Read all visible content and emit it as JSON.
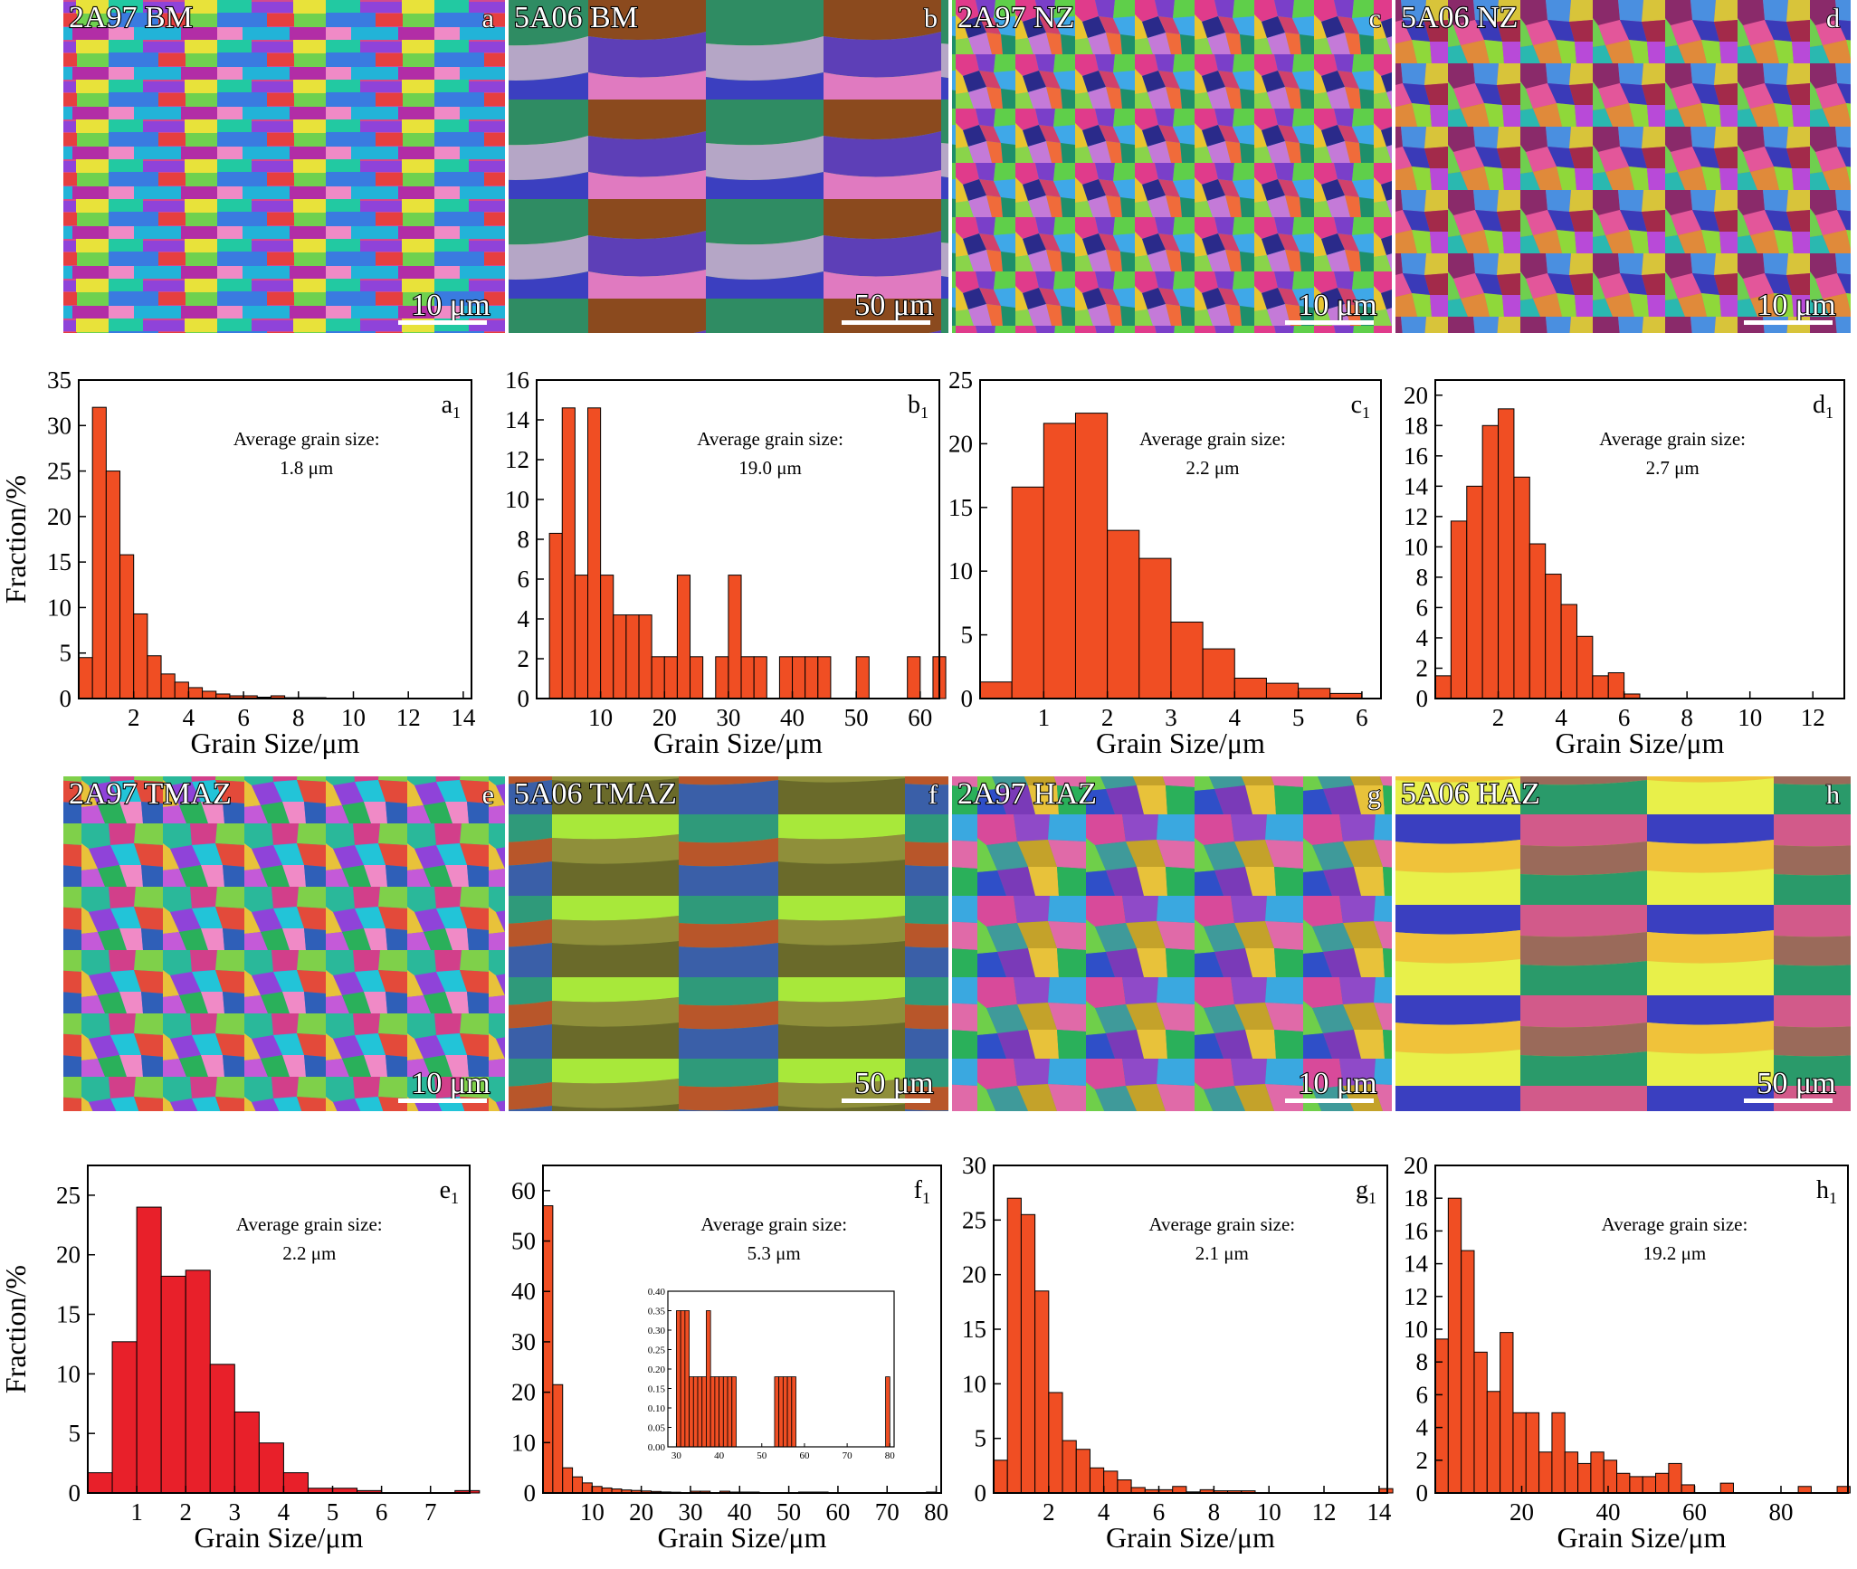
{
  "colors": {
    "bar_orange": "#f04e23",
    "bar_red": "#e8202a",
    "axis": "#000000",
    "scalebar": "#ffffff"
  },
  "maps": [
    {
      "id": "a",
      "title": "2A97 BM",
      "letter": "a",
      "scale": "10 μm"
    },
    {
      "id": "b",
      "title": "5A06 BM",
      "letter": "b",
      "scale": "50 μm"
    },
    {
      "id": "c",
      "title": "2A97 NZ",
      "letter": "c",
      "scale": "10 μm"
    },
    {
      "id": "d",
      "title": "5A06 NZ",
      "letter": "d",
      "scale": "10 μm"
    },
    {
      "id": "e",
      "title": "2A97 TMAZ",
      "letter": "e",
      "scale": "10 μm"
    },
    {
      "id": "f",
      "title": "5A06 TMAZ",
      "letter": "f",
      "scale": "50 μm"
    },
    {
      "id": "g",
      "title": "2A97 HAZ",
      "letter": "g",
      "scale": "10 μm"
    },
    {
      "id": "h",
      "title": "5A06 HAZ",
      "letter": "h",
      "scale": "50 μm"
    }
  ],
  "chart_data": [
    {
      "id": "a1",
      "type": "bar",
      "letter": "a",
      "sub": "1",
      "color": "orange",
      "xlabel": "Grain Size/μm",
      "ylabel": "Fraction/%",
      "annotation": "Average grain size:",
      "average": "1.8 μm",
      "xlim": [
        0,
        14.3
      ],
      "ylim": [
        0,
        35
      ],
      "xticks": [
        2,
        4,
        6,
        8,
        10,
        12,
        14
      ],
      "yticks": [
        0,
        5,
        10,
        15,
        20,
        25,
        30,
        35
      ],
      "bin_width": 0.5,
      "x": [
        0.25,
        0.75,
        1.25,
        1.75,
        2.25,
        2.75,
        3.25,
        3.75,
        4.25,
        4.75,
        5.25,
        5.75,
        6.25,
        6.75,
        7.25,
        7.75,
        8.25,
        8.75
      ],
      "values": [
        4.5,
        32,
        25,
        15.8,
        9.3,
        4.7,
        2.7,
        1.8,
        1.2,
        0.8,
        0.5,
        0.3,
        0.3,
        0.15,
        0.3,
        0.1,
        0.1,
        0.1
      ]
    },
    {
      "id": "b1",
      "type": "bar",
      "letter": "b",
      "sub": "1",
      "color": "orange",
      "xlabel": "Grain Size/μm",
      "ylabel": "",
      "annotation": "Average grain size:",
      "average": "19.0 μm",
      "xlim": [
        0,
        63
      ],
      "ylim": [
        0,
        16
      ],
      "xticks": [
        10,
        20,
        30,
        40,
        50,
        60
      ],
      "yticks": [
        0,
        2,
        4,
        6,
        8,
        10,
        12,
        14,
        16
      ],
      "bin_width": 2,
      "x": [
        3,
        5,
        7,
        9,
        11,
        13,
        15,
        17,
        19,
        21,
        23,
        25,
        29,
        31,
        33,
        35,
        39,
        41,
        43,
        45,
        51,
        59,
        63
      ],
      "values": [
        8.3,
        14.6,
        6.2,
        14.6,
        6.2,
        4.2,
        4.2,
        4.2,
        2.1,
        2.1,
        6.2,
        2.1,
        2.1,
        6.2,
        2.1,
        2.1,
        2.1,
        2.1,
        2.1,
        2.1,
        2.1,
        2.1,
        2.1
      ]
    },
    {
      "id": "c1",
      "type": "bar",
      "letter": "c",
      "sub": "1",
      "color": "orange",
      "xlabel": "Grain Size/μm",
      "ylabel": "",
      "annotation": "Average grain size:",
      "average": "2.2 μm",
      "xlim": [
        0,
        6.3
      ],
      "ylim": [
        0,
        25
      ],
      "xticks": [
        1,
        2,
        3,
        4,
        5,
        6
      ],
      "yticks": [
        0,
        5,
        10,
        15,
        20,
        25
      ],
      "bin_width": 0.5,
      "x": [
        0.25,
        0.75,
        1.25,
        1.75,
        2.25,
        2.75,
        3.25,
        3.75,
        4.25,
        4.75,
        5.25,
        5.75,
        6.25
      ],
      "values": [
        1.3,
        16.6,
        21.6,
        22.4,
        13.2,
        11,
        6,
        3.9,
        1.6,
        1.2,
        0.8,
        0.4,
        0
      ]
    },
    {
      "id": "d1",
      "type": "bar",
      "letter": "d",
      "sub": "1",
      "color": "orange",
      "xlabel": "Grain Size/μm",
      "ylabel": "",
      "annotation": "Average grain size:",
      "average": "2.7 μm",
      "xlim": [
        0,
        13
      ],
      "ylim": [
        0,
        21
      ],
      "xticks": [
        2,
        4,
        6,
        8,
        10,
        12
      ],
      "yticks": [
        0,
        2,
        4,
        6,
        8,
        10,
        12,
        14,
        16,
        18,
        20
      ],
      "bin_width": 0.5,
      "x": [
        0.25,
        0.75,
        1.25,
        1.75,
        2.25,
        2.75,
        3.25,
        3.75,
        4.25,
        4.75,
        5.25,
        5.75,
        6.25
      ],
      "values": [
        1.5,
        11.7,
        14,
        18,
        19.1,
        14.6,
        10.2,
        8.2,
        6.2,
        4.1,
        1.5,
        1.7,
        0.3
      ]
    },
    {
      "id": "e1",
      "type": "bar",
      "letter": "e",
      "sub": "1",
      "color": "red",
      "xlabel": "Grain Size/μm",
      "ylabel": "Fraction/%",
      "annotation": "Average grain size:",
      "average": "2.2 μm",
      "xlim": [
        0,
        7.8
      ],
      "ylim": [
        0,
        27.5
      ],
      "xticks": [
        1,
        2,
        3,
        4,
        5,
        6,
        7
      ],
      "yticks": [
        0,
        5,
        10,
        15,
        20,
        25
      ],
      "bin_width": 0.5,
      "x": [
        0.25,
        0.75,
        1.25,
        1.75,
        2.25,
        2.75,
        3.25,
        3.75,
        4.25,
        4.75,
        5.25,
        5.75,
        6.25,
        6.75,
        7.25,
        7.75
      ],
      "values": [
        1.7,
        12.7,
        24,
        18.2,
        18.7,
        10.8,
        6.8,
        4.2,
        1.7,
        0.4,
        0.4,
        0.2,
        0,
        0,
        0,
        0.2
      ]
    },
    {
      "id": "f1",
      "type": "bar",
      "letter": "f",
      "sub": "1",
      "color": "orange",
      "xlabel": "Grain Size/μm",
      "ylabel": "",
      "annotation": "Average grain size:",
      "average": "5.3 μm",
      "xlim": [
        0,
        81
      ],
      "ylim": [
        0,
        65
      ],
      "xticks": [
        10,
        20,
        30,
        40,
        50,
        60,
        70,
        80
      ],
      "yticks": [
        0,
        10,
        20,
        30,
        40,
        50,
        60
      ],
      "bin_width": 2,
      "x": [
        1,
        3,
        5,
        7,
        9,
        11,
        13,
        15,
        17,
        19,
        21,
        23,
        25,
        27,
        31,
        33,
        37,
        39,
        41,
        43,
        53,
        55,
        57,
        79
      ],
      "values": [
        57,
        21.5,
        5,
        3.2,
        2,
        1.3,
        1,
        0.8,
        0.6,
        0.5,
        0.4,
        0.3,
        0.2,
        0.15,
        0.35,
        0.35,
        0.35,
        0.18,
        0.18,
        0.18,
        0.18,
        0.18,
        0.18,
        0.18
      ],
      "inset": {
        "xlim": [
          28,
          81
        ],
        "ylim": [
          0,
          0.4
        ],
        "xticks": [
          30,
          40,
          50,
          60,
          70,
          80
        ],
        "yticks": [
          0,
          0.05,
          0.1,
          0.15,
          0.2,
          0.25,
          0.3,
          0.35,
          0.4
        ],
        "ytick_labels": [
          "0.00",
          "0.05",
          "0.10",
          "0.15",
          "0.20",
          "0.25",
          "0.30",
          "0.35",
          "0.40"
        ],
        "bin_width": 1,
        "x": [
          30.5,
          31.5,
          32.5,
          33.5,
          34.5,
          35.5,
          36.5,
          37.5,
          38.5,
          39.5,
          40.5,
          41.5,
          42.5,
          43.5,
          53.5,
          54.5,
          55.5,
          56.5,
          57.5,
          79.5
        ],
        "values": [
          0.35,
          0.35,
          0.35,
          0.18,
          0.18,
          0.18,
          0.18,
          0.35,
          0.18,
          0.18,
          0.18,
          0.18,
          0.18,
          0.18,
          0.18,
          0.18,
          0.18,
          0.18,
          0.18,
          0.18
        ]
      }
    },
    {
      "id": "g1",
      "type": "bar",
      "letter": "g",
      "sub": "1",
      "color": "orange",
      "xlabel": "Grain Size/μm",
      "ylabel": "",
      "annotation": "Average grain size:",
      "average": "2.1 μm",
      "xlim": [
        0,
        14.3
      ],
      "ylim": [
        0,
        30
      ],
      "xticks": [
        2,
        4,
        6,
        8,
        10,
        12,
        14
      ],
      "yticks": [
        0,
        5,
        10,
        15,
        20,
        25,
        30
      ],
      "bin_width": 0.5,
      "x": [
        0.25,
        0.75,
        1.25,
        1.75,
        2.25,
        2.75,
        3.25,
        3.75,
        4.25,
        4.75,
        5.25,
        5.75,
        6.25,
        6.75,
        7.25,
        7.75,
        8.25,
        8.75,
        9.25,
        14.25
      ],
      "values": [
        3,
        27,
        25.5,
        18.5,
        9.2,
        4.8,
        4,
        2.3,
        2,
        1.2,
        0.5,
        0.3,
        0.3,
        0.6,
        0.1,
        0.3,
        0.2,
        0.2,
        0.2,
        0.4
      ]
    },
    {
      "id": "h1",
      "type": "bar",
      "letter": "h",
      "sub": "1",
      "color": "orange",
      "xlabel": "Grain Size/μm",
      "ylabel": "",
      "annotation": "Average grain size:",
      "average": "19.2 μm",
      "xlim": [
        0,
        95.5
      ],
      "ylim": [
        0,
        20
      ],
      "xticks": [
        20,
        40,
        60,
        80
      ],
      "yticks": [
        0,
        2,
        4,
        6,
        8,
        10,
        12,
        14,
        16,
        18,
        20
      ],
      "bin_width": 3,
      "x": [
        1.5,
        4.5,
        7.5,
        10.5,
        13.5,
        16.5,
        19.5,
        22.5,
        25.5,
        28.5,
        31.5,
        34.5,
        37.5,
        40.5,
        43.5,
        46.5,
        49.5,
        52.5,
        55.5,
        58.5,
        67.5,
        85.5,
        94.5
      ],
      "values": [
        9.4,
        18,
        14.8,
        8.6,
        6.2,
        9.8,
        4.9,
        4.9,
        2.5,
        4.9,
        2.5,
        1.8,
        2.5,
        2,
        1.2,
        1,
        1,
        1.2,
        1.8,
        0.5,
        0.6,
        0.4,
        0.4
      ]
    }
  ]
}
